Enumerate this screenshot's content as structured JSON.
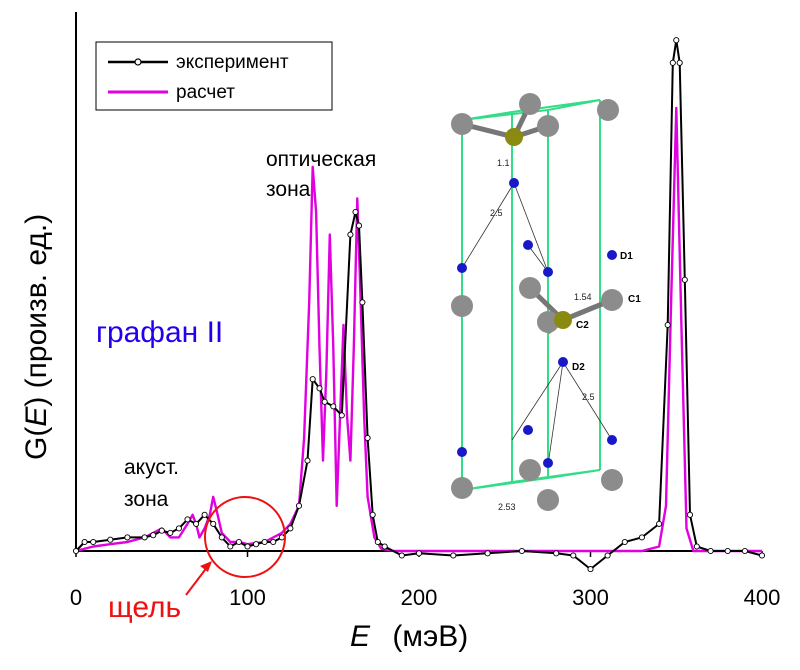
{
  "chart_data": {
    "type": "line",
    "xlabel_italic": "E",
    "xlabel_unit": "(мэВ)",
    "ylabel_prefix": "G(",
    "ylabel_italic": "E",
    "ylabel_suffix": ") (произв. ед.)",
    "xlim": [
      0,
      400
    ],
    "xticks": [
      0,
      100,
      200,
      300,
      400
    ],
    "xtick_labels": [
      "0",
      "100",
      "200",
      "300",
      "400"
    ],
    "legend": {
      "position": "top-left",
      "entries": [
        {
          "label": "эксперимент",
          "color": "#000000",
          "marker": "open-circle"
        },
        {
          "label": "расчет",
          "color": "#e000e0",
          "marker": "none"
        }
      ]
    },
    "series": [
      {
        "name": "эксперимент",
        "color": "#000000",
        "x": [
          0,
          5,
          10,
          20,
          30,
          40,
          45,
          50,
          55,
          60,
          65,
          70,
          75,
          80,
          85,
          90,
          95,
          100,
          105,
          110,
          115,
          120,
          125,
          130,
          135,
          138,
          142,
          145,
          150,
          155,
          160,
          163,
          165,
          167,
          170,
          173,
          176,
          180,
          190,
          200,
          220,
          240,
          260,
          280,
          290,
          300,
          310,
          320,
          330,
          340,
          345,
          348,
          350,
          352,
          355,
          358,
          362,
          370,
          380,
          390,
          400
        ],
        "y": [
          0,
          0.02,
          0.02,
          0.025,
          0.03,
          0.03,
          0.035,
          0.045,
          0.04,
          0.05,
          0.07,
          0.06,
          0.08,
          0.06,
          0.03,
          0.01,
          0.02,
          0.01,
          0.015,
          0.02,
          0.02,
          0.03,
          0.05,
          0.1,
          0.2,
          0.38,
          0.36,
          0.33,
          0.32,
          0.3,
          0.7,
          0.75,
          0.72,
          0.55,
          0.25,
          0.08,
          0.02,
          0.01,
          -0.01,
          -0.005,
          -0.01,
          -0.005,
          0,
          -0.005,
          -0.01,
          -0.04,
          -0.01,
          0.02,
          0.03,
          0.06,
          0.5,
          1.08,
          1.13,
          1.08,
          0.6,
          0.08,
          0.01,
          0,
          0,
          0,
          -0.01
        ]
      },
      {
        "name": "расчет",
        "color": "#e000e0",
        "x": [
          0,
          10,
          20,
          30,
          40,
          45,
          50,
          55,
          60,
          65,
          68,
          70,
          72,
          75,
          78,
          80,
          82,
          85,
          90,
          95,
          100,
          110,
          120,
          125,
          130,
          133,
          136,
          138,
          140,
          142,
          144,
          146,
          148,
          150,
          152,
          154,
          156,
          158,
          160,
          162,
          164,
          166,
          168,
          170,
          174,
          178,
          185,
          200,
          300,
          330,
          340,
          344,
          347,
          350,
          353,
          356,
          360,
          370,
          400
        ],
        "y": [
          0,
          0.01,
          0.015,
          0.02,
          0.03,
          0.04,
          0.05,
          0.03,
          0.03,
          0.06,
          0.08,
          0.06,
          0.03,
          0.05,
          0.08,
          0.12,
          0.09,
          0.04,
          0.02,
          0.02,
          0.015,
          0.02,
          0.04,
          0.06,
          0.1,
          0.25,
          0.55,
          0.85,
          0.75,
          0.45,
          0.2,
          0.4,
          0.7,
          0.45,
          0.1,
          0.3,
          0.5,
          0.3,
          0.2,
          0.45,
          0.78,
          0.55,
          0.3,
          0.12,
          0.03,
          0.005,
          0,
          0,
          0,
          0,
          0.01,
          0.1,
          0.55,
          0.98,
          0.5,
          0.05,
          0,
          0,
          0
        ]
      }
    ],
    "annotations": [
      {
        "text": "оптическая",
        "color": "#000000"
      },
      {
        "text": "зона",
        "color": "#000000"
      },
      {
        "text": "графан II",
        "color": "#2200ee"
      },
      {
        "text": "акуст.",
        "color": "#000000"
      },
      {
        "text": "зона",
        "color": "#000000"
      },
      {
        "text": "щель",
        "color": "#ee0000"
      }
    ],
    "inset": {
      "atom_labels": [
        "D1",
        "C1",
        "C2",
        "D2"
      ],
      "distance_labels": [
        "1.1",
        "2.5",
        "1.54",
        "2.5",
        "2.53"
      ],
      "colors": {
        "carbon": "#808080",
        "substituted": "#8a8a10",
        "deuterium": "#1818c8",
        "cell_edges": "#20e080"
      }
    }
  }
}
